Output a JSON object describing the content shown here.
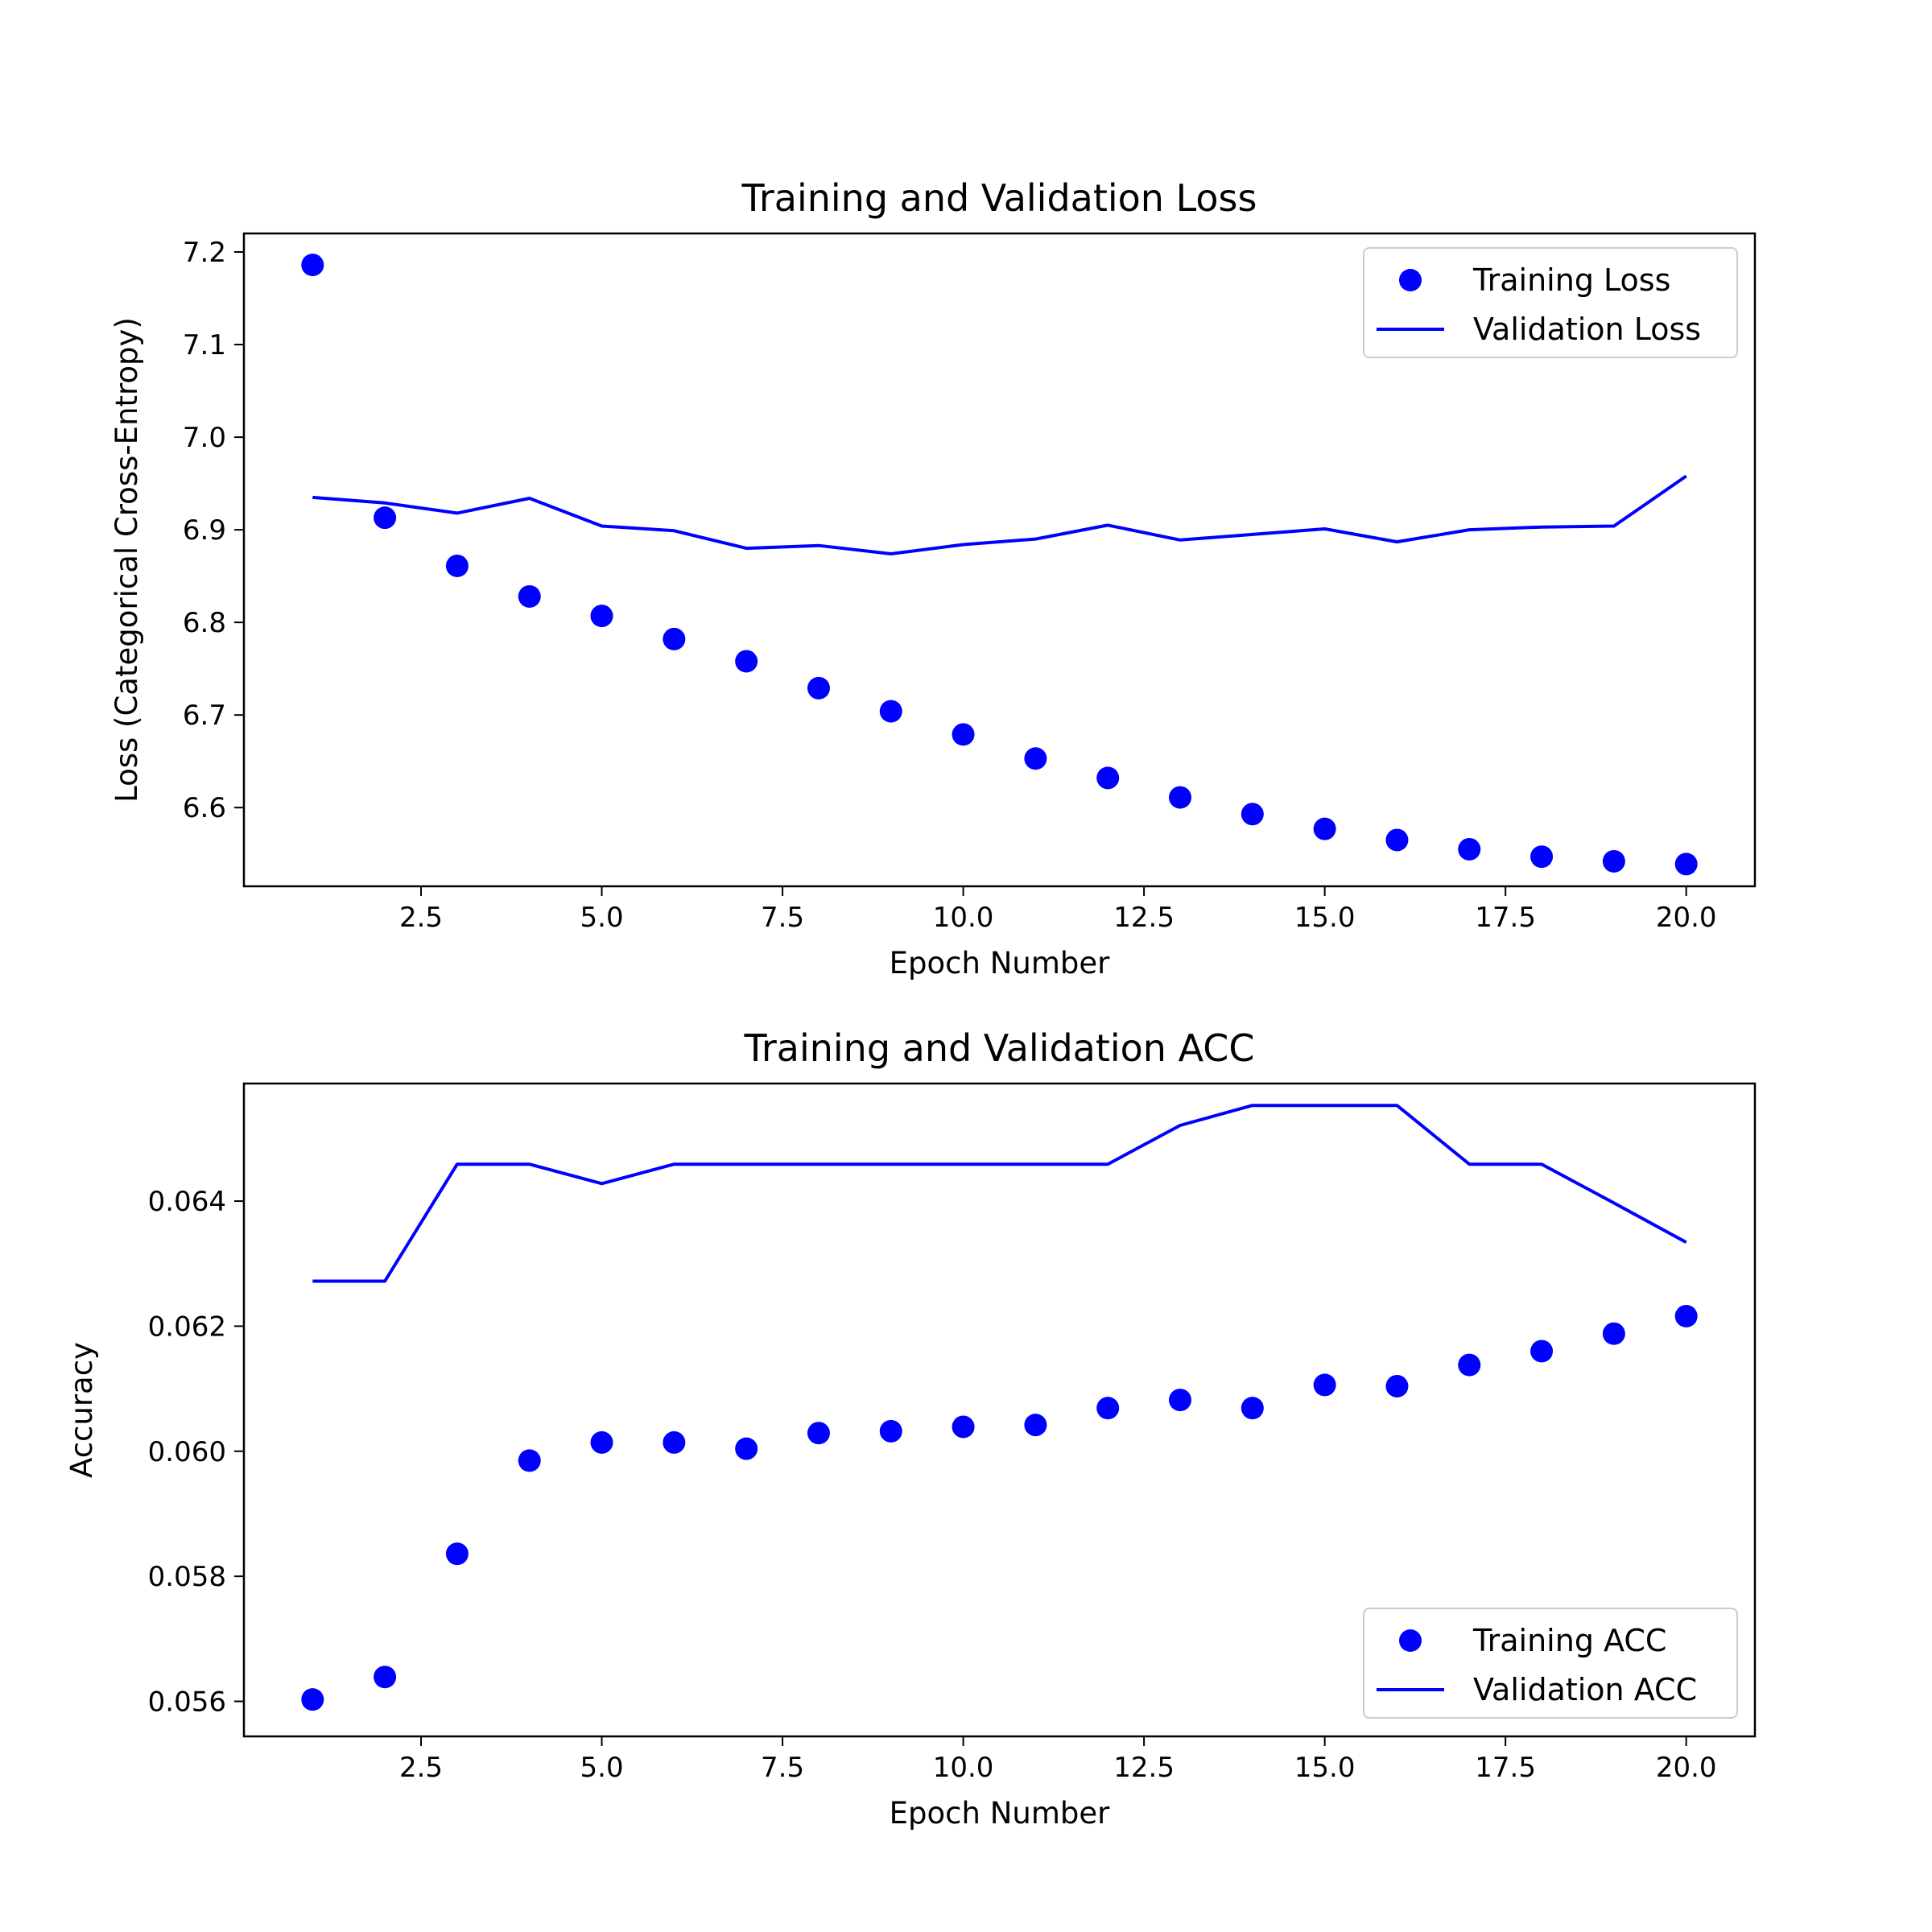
{
  "chart_data": [
    {
      "id": "loss",
      "type": "line",
      "title": "Training and Validation Loss",
      "xlabel": "Epoch Number",
      "ylabel": "Loss (Categorical Cross-Entropy)",
      "xlim": [
        0.05,
        20.95
      ],
      "ylim": [
        6.515,
        7.22
      ],
      "xticks": [
        2.5,
        5.0,
        7.5,
        10.0,
        12.5,
        15.0,
        17.5,
        20.0
      ],
      "xtick_labels": [
        "2.5",
        "5.0",
        "7.5",
        "10.0",
        "12.5",
        "15.0",
        "17.5",
        "20.0"
      ],
      "yticks": [
        6.6,
        6.7,
        6.8,
        6.9,
        7.0,
        7.1,
        7.2
      ],
      "ytick_labels": [
        "6.6",
        "6.7",
        "6.8",
        "6.9",
        "7.0",
        "7.1",
        "7.2"
      ],
      "grid": false,
      "legend_position": "top-right",
      "color": "#0000ff",
      "x": [
        1,
        2,
        3,
        4,
        5,
        6,
        7,
        8,
        9,
        10,
        11,
        12,
        13,
        14,
        15,
        16,
        17,
        18,
        19,
        20
      ],
      "series": [
        {
          "name": "Training Loss",
          "style": "markers",
          "values": [
            7.186,
            6.913,
            6.861,
            6.828,
            6.807,
            6.782,
            6.758,
            6.729,
            6.704,
            6.679,
            6.653,
            6.632,
            6.611,
            6.593,
            6.577,
            6.565,
            6.555,
            6.547,
            6.542,
            6.539
          ]
        },
        {
          "name": "Validation Loss",
          "style": "line",
          "values": [
            6.935,
            6.929,
            6.918,
            6.934,
            6.904,
            6.899,
            6.88,
            6.883,
            6.874,
            6.884,
            6.89,
            6.905,
            6.889,
            6.895,
            6.901,
            6.887,
            6.9,
            6.903,
            6.904,
            6.958
          ]
        }
      ]
    },
    {
      "id": "acc",
      "type": "line",
      "title": "Training and Validation ACC",
      "xlabel": "Epoch Number",
      "ylabel": "Accuracy",
      "xlim": [
        0.05,
        20.95
      ],
      "ylim": [
        0.05544,
        0.06588
      ],
      "xticks": [
        2.5,
        5.0,
        7.5,
        10.0,
        12.5,
        15.0,
        17.5,
        20.0
      ],
      "xtick_labels": [
        "2.5",
        "5.0",
        "7.5",
        "10.0",
        "12.5",
        "15.0",
        "17.5",
        "20.0"
      ],
      "yticks": [
        0.056,
        0.058,
        0.06,
        0.062,
        0.064
      ],
      "ytick_labels": [
        "0.056",
        "0.058",
        "0.060",
        "0.062",
        "0.064"
      ],
      "grid": false,
      "legend_position": "bottom-right",
      "color": "#0000ff",
      "x": [
        1,
        2,
        3,
        4,
        5,
        6,
        7,
        8,
        9,
        10,
        11,
        12,
        13,
        14,
        15,
        16,
        17,
        18,
        19,
        20
      ],
      "series": [
        {
          "name": "Training ACC",
          "style": "markers",
          "values": [
            0.05603,
            0.05639,
            0.05836,
            0.05985,
            0.06014,
            0.06014,
            0.06004,
            0.06029,
            0.06032,
            0.06039,
            0.06042,
            0.06069,
            0.06082,
            0.06069,
            0.06106,
            0.06104,
            0.06138,
            0.0616,
            0.06188,
            0.06216
          ]
        },
        {
          "name": "Validation ACC",
          "style": "line",
          "values": [
            0.06272,
            0.06272,
            0.06459,
            0.06459,
            0.06428,
            0.06459,
            0.06459,
            0.06459,
            0.06459,
            0.06459,
            0.06459,
            0.06459,
            0.06521,
            0.06553,
            0.06553,
            0.06553,
            0.06459,
            0.06459,
            0.06397,
            0.06334
          ]
        }
      ]
    }
  ]
}
